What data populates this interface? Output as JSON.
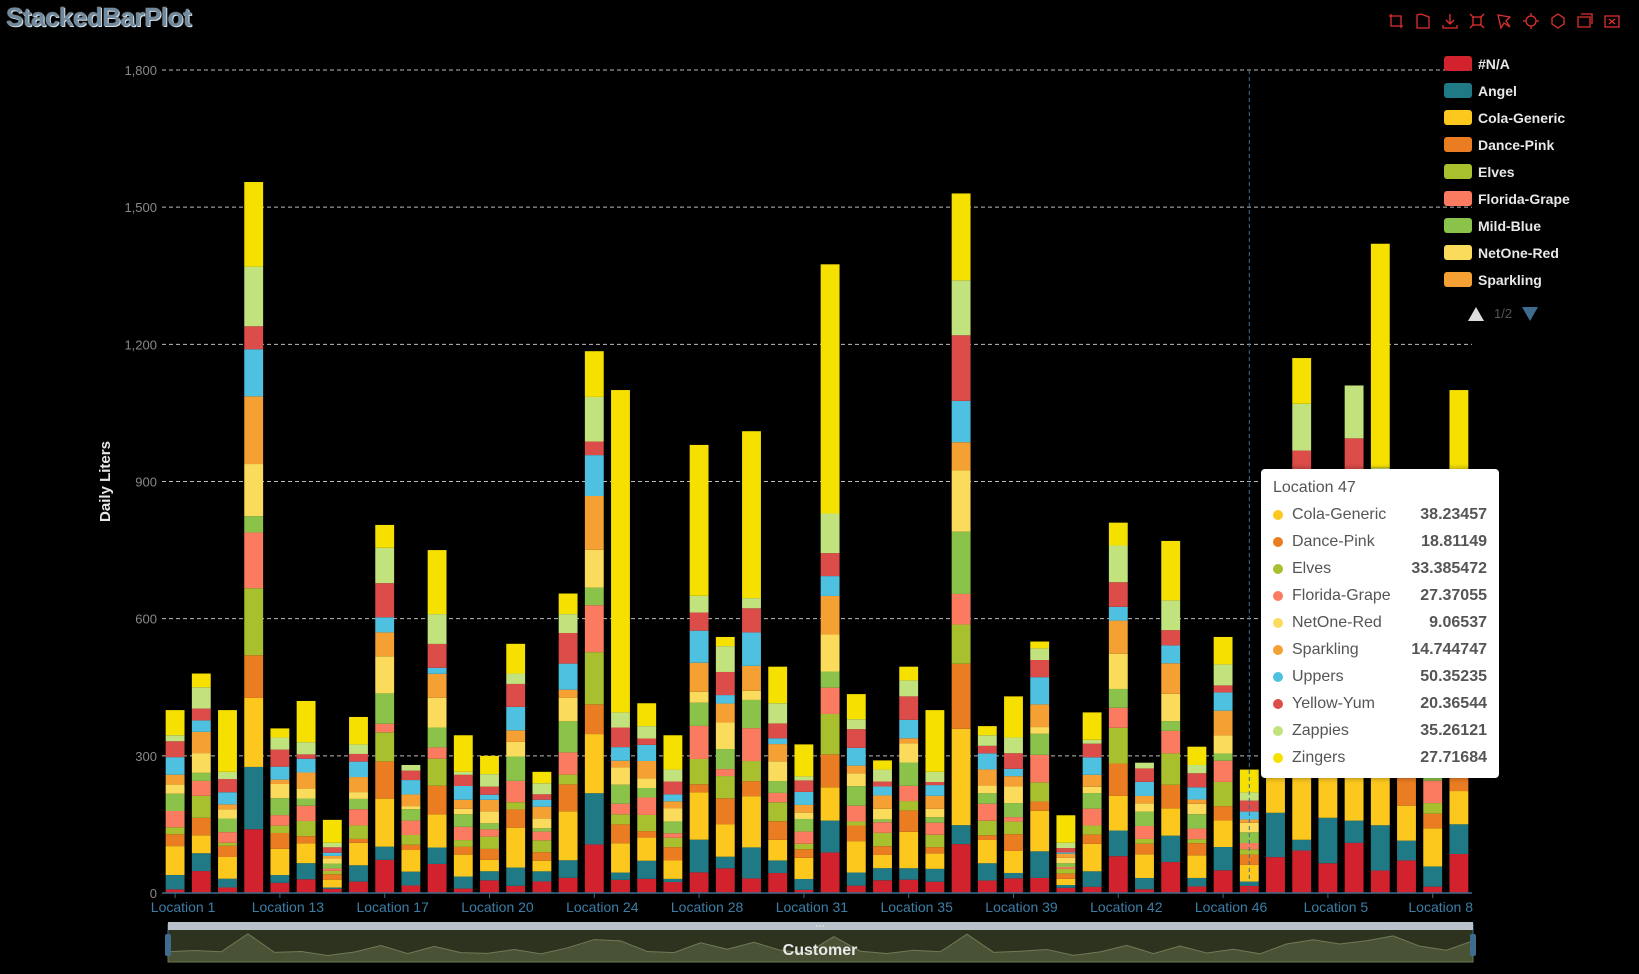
{
  "title": "StackedBarPlot",
  "toolbar": {
    "icons": [
      "rect-select-icon",
      "polygon-select-icon",
      "download-icon",
      "zoom-icon",
      "lasso-icon",
      "restore-icon",
      "reset-icon",
      "data-view-icon",
      "clear-select-icon"
    ],
    "color": "#e03030"
  },
  "dataZoom": {
    "label": "Customer",
    "handle_text": "⋯"
  },
  "legend": {
    "items": [
      {
        "name": "#N/A",
        "color": "#d2222d"
      },
      {
        "name": "Angel",
        "color": "#1f7a86"
      },
      {
        "name": "Cola-Generic",
        "color": "#fcc81e"
      },
      {
        "name": "Dance-Pink",
        "color": "#ea7d22"
      },
      {
        "name": "Elves",
        "color": "#a8bf2e"
      },
      {
        "name": "Florida-Grape",
        "color": "#fb7b60"
      },
      {
        "name": "Mild-Blue",
        "color": "#8bc34a"
      },
      {
        "name": "NetOne-Red",
        "color": "#fbdb5c"
      },
      {
        "name": "Sparkling",
        "color": "#f4a033"
      }
    ],
    "pager": "1/2"
  },
  "tooltip": {
    "title": "Location 47",
    "rows": [
      {
        "name": "Cola-Generic",
        "value": "38.23457",
        "color": "#fcc81e"
      },
      {
        "name": "Dance-Pink",
        "value": "18.81149",
        "color": "#ea7d22"
      },
      {
        "name": "Elves",
        "value": "33.385472",
        "color": "#a8bf2e"
      },
      {
        "name": "Florida-Grape",
        "value": "27.37055",
        "color": "#fb7b60"
      },
      {
        "name": "NetOne-Red",
        "value": "9.06537",
        "color": "#fbdb5c"
      },
      {
        "name": "Sparkling",
        "value": "14.744747",
        "color": "#f4a033"
      },
      {
        "name": "Uppers",
        "value": "50.35235",
        "color": "#4fc1e0"
      },
      {
        "name": "Yellow-Yum",
        "value": "20.36544",
        "color": "#dc4c48"
      },
      {
        "name": "Zappies",
        "value": "35.26121",
        "color": "#c2e27e"
      },
      {
        "name": "Zingers",
        "value": "27.71684",
        "color": "#f6e000"
      }
    ]
  },
  "chart_data": {
    "type": "bar",
    "stacked": true,
    "title": "StackedBarPlot",
    "ylabel": "Daily Liters",
    "xlabel": "Customer",
    "ylim": [
      0,
      1800
    ],
    "yticks": [
      0,
      300,
      600,
      900,
      1200,
      1500,
      1800
    ],
    "ytick_labels": [
      "0",
      "300",
      "600",
      "900",
      "1,200",
      "1,500",
      "1,800"
    ],
    "grid": true,
    "legend_position": "top-right",
    "x_tick_labels": [
      "Location 1",
      "Location 13",
      "Location 17",
      "Location 20",
      "Location 24",
      "Location 28",
      "Location 31",
      "Location 35",
      "Location 39",
      "Location 42",
      "Location 46",
      "Location 5",
      "Location 8"
    ],
    "x_tick_every": 4,
    "series_colors": [
      "#d2222d",
      "#1f7a86",
      "#fcc81e",
      "#ea7d22",
      "#a8bf2e",
      "#fb7b60",
      "#8bc34a",
      "#fbdb5c",
      "#f4a033",
      "#4fc1e0",
      "#dc4c48",
      "#c2e27e",
      "#f6e000"
    ],
    "totals": [
      400,
      480,
      400,
      1555,
      360,
      420,
      160,
      385,
      805,
      280,
      750,
      345,
      300,
      545,
      265,
      655,
      1185,
      1100,
      415,
      345,
      980,
      560,
      1010,
      495,
      325,
      1375,
      435,
      290,
      495,
      400,
      1530,
      365,
      430,
      550,
      170,
      395,
      810,
      285,
      770,
      320,
      560,
      270,
      900,
      1170,
      900,
      1110,
      1420,
      760,
      500,
      1100
    ],
    "top_zingers": [
      55,
      30,
      135,
      185,
      20,
      90,
      50,
      60,
      50,
      0,
      140,
      80,
      40,
      65,
      25,
      45,
      100,
      705,
      50,
      75,
      330,
      20,
      365,
      80,
      70,
      545,
      55,
      20,
      30,
      135,
      190,
      20,
      90,
      15,
      60,
      60,
      50,
      0,
      130,
      40,
      60,
      50,
      0,
      100,
      0,
      0,
      490,
      80,
      40,
      300
    ],
    "highlight_index": 41
  }
}
